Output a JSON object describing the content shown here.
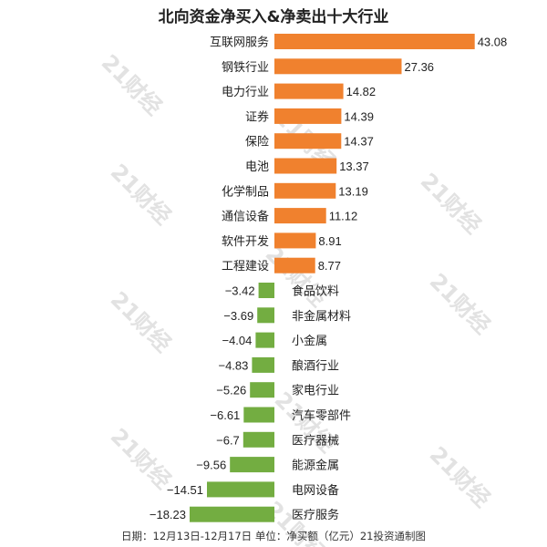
{
  "watermark": "21财经",
  "colors": {
    "positive": "#F0812E",
    "negative": "#73AD41",
    "text": "#222222"
  },
  "chart_data": {
    "type": "bar",
    "orientation": "horizontal",
    "title": "北向资金净买入&净卖出十大行业",
    "footer": "日期：12月13日-12月17日 单位：净买额（亿元）21投资通制图",
    "categories": [
      "互联网服务",
      "钢铁行业",
      "电力行业",
      "证券",
      "保险",
      "电池",
      "化学制品",
      "通信设备",
      "软件开发",
      "工程建设",
      "食品饮料",
      "非金属材料",
      "小金属",
      "酿酒行业",
      "家电行业",
      "汽车零部件",
      "医疗器械",
      "能源金属",
      "电网设备",
      "医疗服务"
    ],
    "values": [
      43.08,
      27.36,
      14.82,
      14.39,
      14.37,
      13.37,
      13.19,
      11.12,
      8.91,
      8.77,
      -3.42,
      -3.69,
      -4.04,
      -4.83,
      -5.26,
      -6.61,
      -6.7,
      -9.56,
      -14.51,
      -18.23
    ],
    "value_labels": [
      "43.08",
      "27.36",
      "14.82",
      "14.39",
      "14.37",
      "13.37",
      "13.19",
      "11.12",
      "8.91",
      "8.77",
      "−3.42",
      "−3.69",
      "−4.04",
      "−4.83",
      "−5.26",
      "−6.61",
      "−6.7",
      "−9.56",
      "−14.51",
      "−18.23"
    ],
    "xlim": [
      -18.5,
      43.5
    ],
    "grid": false,
    "legend": "none"
  }
}
